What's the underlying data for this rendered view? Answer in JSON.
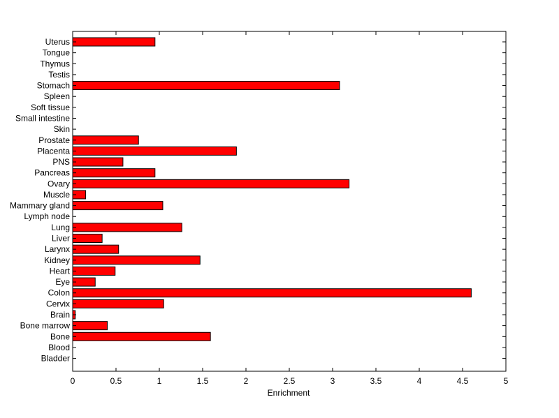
{
  "chart_data": {
    "type": "bar",
    "orientation": "horizontal",
    "title": "",
    "xlabel": "Enrichment",
    "ylabel": "",
    "xlim": [
      0,
      5
    ],
    "xticks": [
      0,
      0.5,
      1,
      1.5,
      2,
      2.5,
      3,
      3.5,
      4,
      4.5,
      5
    ],
    "xtick_labels": [
      "0",
      "0.5",
      "1",
      "1.5",
      "2",
      "2.5",
      "3",
      "3.5",
      "4",
      "4.5",
      "5"
    ],
    "grid": false,
    "legend": "none",
    "bar_color": "#ff0000",
    "categories": [
      "Uterus",
      "Tongue",
      "Thymus",
      "Testis",
      "Stomach",
      "Spleen",
      "Soft tissue",
      "Small intestine",
      "Skin",
      "Prostate",
      "Placenta",
      "PNS",
      "Pancreas",
      "Ovary",
      "Muscle",
      "Mammary gland",
      "Lymph node",
      "Lung",
      "Liver",
      "Larynx",
      "Kidney",
      "Heart",
      "Eye",
      "Colon",
      "Cervix",
      "Brain",
      "Bone marrow",
      "Bone",
      "Blood",
      "Bladder"
    ],
    "values": [
      0.95,
      0,
      0,
      0,
      3.08,
      0,
      0,
      0,
      0,
      0.76,
      1.89,
      0.58,
      0.95,
      3.19,
      0.15,
      1.04,
      0,
      1.26,
      0.34,
      0.53,
      1.47,
      0.49,
      0.26,
      4.6,
      1.05,
      0.03,
      0.4,
      1.59,
      0,
      0
    ]
  }
}
